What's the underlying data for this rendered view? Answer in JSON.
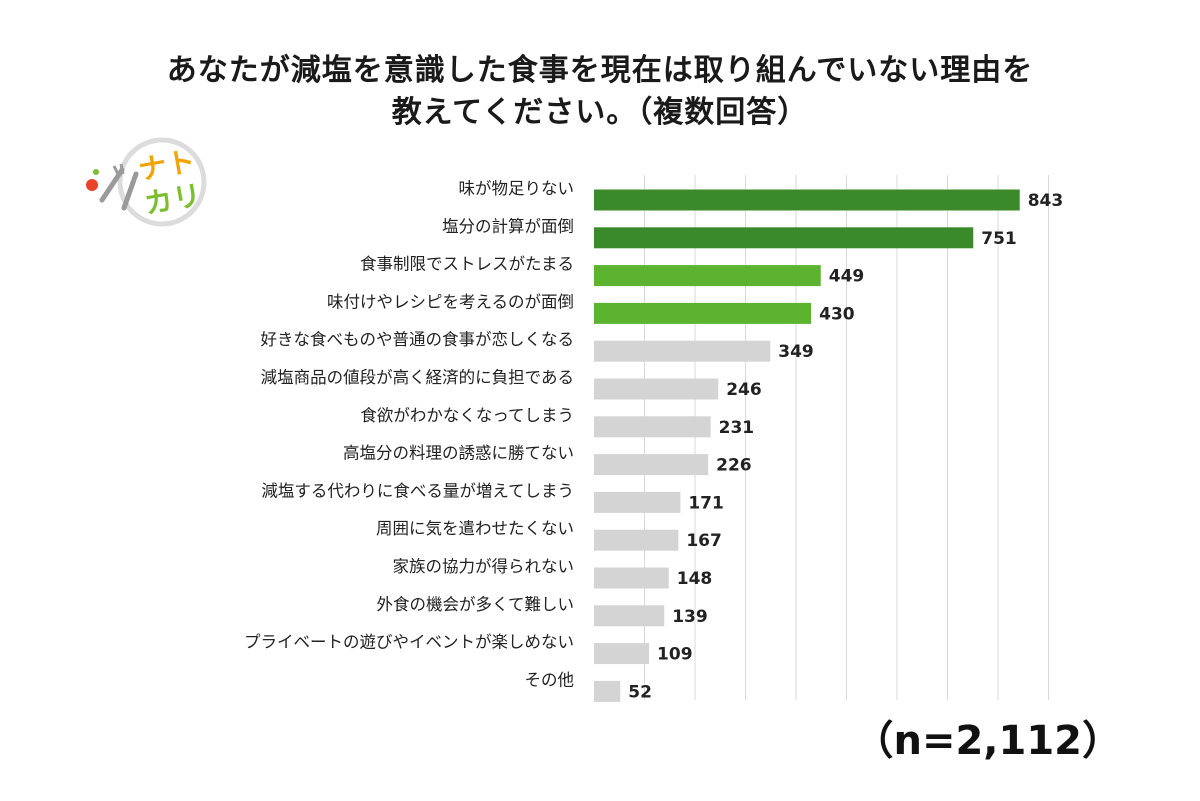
{
  "title_line1": "あなたが減塩を意識した食事を現在は取り組んでいない理由を",
  "title_line2": "教えてください。（複数回答）",
  "logo": {
    "line1": "ナト",
    "line2": "カリ",
    "icon": "fork-knife-icon"
  },
  "sample_size": "（n=2,112）",
  "colors": {
    "dark_green": "#3a8a2c",
    "light_green": "#5bb32f",
    "gray": "#d4d4d4",
    "grid": "#d9d9d9"
  },
  "chart_data": {
    "type": "bar",
    "orientation": "horizontal",
    "categories": [
      "味が物足りない",
      "塩分の計算が面倒",
      "食事制限でストレスがたまる",
      "味付けやレシピを考えるのが面倒",
      "好きな食べものや普通の食事が恋しくなる",
      "減塩商品の値段が高く経済的に負担である",
      "食欲がわかなくなってしまう",
      "高塩分の料理の誘惑に勝てない",
      "減塩する代わりに食べる量が増えてしまう",
      "周囲に気を遣わせたくない",
      "家族の協力が得られない",
      "外食の機会が多くて難しい",
      "プライベートの遊びやイベントが楽しめない",
      "その他"
    ],
    "values": [
      843,
      751,
      449,
      430,
      349,
      246,
      231,
      226,
      171,
      167,
      148,
      139,
      109,
      52
    ],
    "bar_colors": [
      "dark_green",
      "dark_green",
      "light_green",
      "light_green",
      "gray",
      "gray",
      "gray",
      "gray",
      "gray",
      "gray",
      "gray",
      "gray",
      "gray",
      "gray"
    ],
    "xlim": [
      0,
      900
    ],
    "grid": true,
    "grid_step": 100
  }
}
